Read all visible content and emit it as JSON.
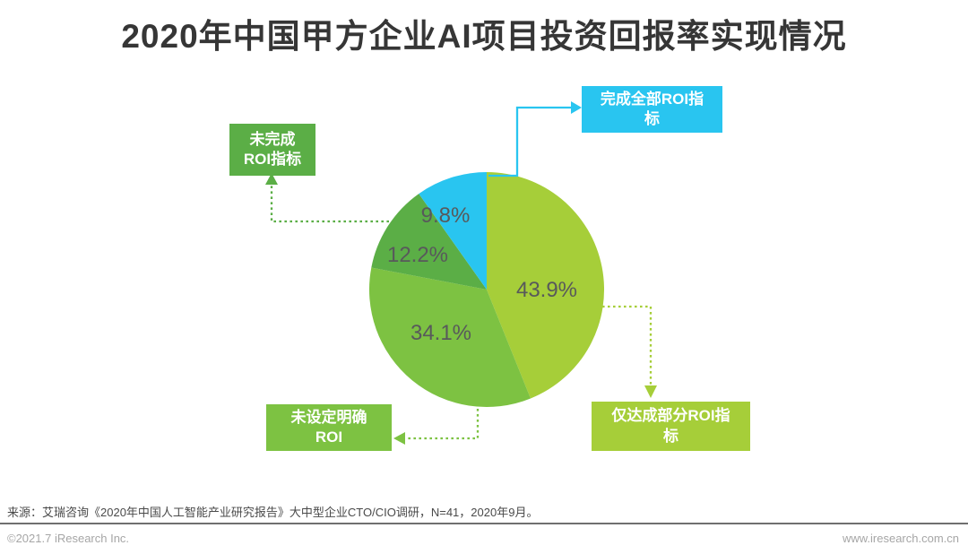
{
  "title": "2020年中国甲方企业AI项目投资回报率实现情况",
  "chart_data": {
    "type": "pie",
    "title": "2020年中国甲方企业AI项目投资回报率实现情况",
    "unit": "%",
    "start_angle_deg": 0,
    "direction": "clockwise",
    "legend_position": "callout-boxes",
    "segments": [
      {
        "label": "仅达成部分ROI指标",
        "value": 43.9,
        "pct_label": "43.9%",
        "color": "#A6CE39"
      },
      {
        "label": "未设定明确ROI",
        "value": 34.1,
        "pct_label": "34.1%",
        "color": "#7DC242"
      },
      {
        "label": "未完成ROI指标",
        "value": 12.2,
        "pct_label": "12.2%",
        "color": "#5BAE46"
      },
      {
        "label": "完成全部ROI指标",
        "value": 9.8,
        "pct_label": "9.8%",
        "color": "#29C5F0"
      }
    ],
    "callouts": [
      {
        "text": "完成全部ROI指\n标",
        "segment": "完成全部ROI指标",
        "color": "#29C5F0",
        "line_style": "solid"
      },
      {
        "text": "未完成\nROI指标",
        "segment": "未完成ROI指标",
        "color": "#5BAE46",
        "line_style": "dotted"
      },
      {
        "text": "未设定明确\nROI",
        "segment": "未设定明确ROI",
        "color": "#7DC242",
        "line_style": "dotted"
      },
      {
        "text": "仅达成部分ROI指\n标",
        "segment": "仅达成部分ROI指标",
        "color": "#A6CE39",
        "line_style": "dotted"
      }
    ]
  },
  "source_note": "来源：艾瑞咨询《2020年中国人工智能产业研究报告》大中型企业CTO/CIO调研，N=41，2020年9月。",
  "footer": {
    "left": "©2021.7 iResearch Inc.",
    "right": "www.iresearch.com.cn"
  },
  "colors": {
    "title": "#363636",
    "pct_label": "#58595B",
    "source": "#4a4a4a",
    "footer": "#a6a6a6",
    "divider": "#6f6f6f"
  }
}
